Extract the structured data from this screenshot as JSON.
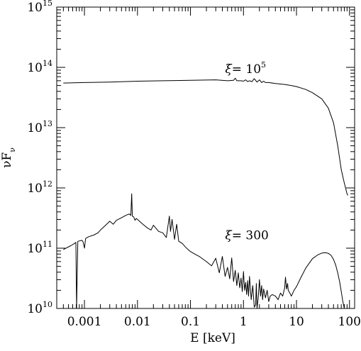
{
  "chart_data": {
    "type": "line",
    "title": "",
    "xlabel": "E [keV]",
    "ylabel": "νFν",
    "ylabel_parts": {
      "main": "νF",
      "sub": "ν"
    },
    "x_scale": "log",
    "y_scale": "log",
    "xlim": [
      0.0003,
      125
    ],
    "ylim": [
      10000000000.0,
      1000000000000000.0
    ],
    "grid": false,
    "x_ticks": [
      {
        "value": 0.001,
        "label": "0.001"
      },
      {
        "value": 0.01,
        "label": "0.01"
      },
      {
        "value": 0.1,
        "label": "0.1"
      },
      {
        "value": 1,
        "label": "1"
      },
      {
        "value": 10,
        "label": "10"
      },
      {
        "value": 100,
        "label": "100"
      }
    ],
    "y_ticks": [
      {
        "value": 10000000000.0,
        "base": "10",
        "exp": "10"
      },
      {
        "value": 100000000000.0,
        "base": "10",
        "exp": "11"
      },
      {
        "value": 1000000000000.0,
        "base": "10",
        "exp": "12"
      },
      {
        "value": 10000000000000.0,
        "base": "10",
        "exp": "13"
      },
      {
        "value": 100000000000000.0,
        "base": "10",
        "exp": "14"
      },
      {
        "value": 1000000000000000.0,
        "base": "10",
        "exp": "15"
      }
    ],
    "annotations": [
      {
        "id": "xi-high",
        "symbol": "ξ",
        "text": "= 10",
        "exp": "5",
        "x": 0.45,
        "y": 80000000000000.0
      },
      {
        "id": "xi-low",
        "symbol": "ξ",
        "text": "= 300",
        "exp": "",
        "x": 0.45,
        "y": 140000000000.0
      }
    ],
    "series": [
      {
        "id": "xi-1e5",
        "x": [
          0.0004,
          0.001,
          0.003,
          0.01,
          0.03,
          0.1,
          0.3,
          0.5,
          0.65,
          0.7,
          0.75,
          0.9,
          1.0,
          1.1,
          1.2,
          1.3,
          1.45,
          1.6,
          1.8,
          2.0,
          2.2,
          2.4,
          2.6,
          3.0,
          4.0,
          6.0,
          8.0,
          10,
          15,
          20,
          30,
          40,
          50,
          60,
          70,
          80,
          90,
          93
        ],
        "y": [
          55000000000000.0,
          56000000000000.0,
          57000000000000.0,
          59000000000000.0,
          60000000000000.0,
          61000000000000.0,
          62000000000000.0,
          60000000000000.0,
          61000000000000.0,
          66000000000000.0,
          60000000000000.0,
          60000000000000.0,
          59000000000000.0,
          62000000000000.0,
          58000000000000.0,
          60000000000000.0,
          58000000000000.0,
          65000000000000.0,
          57000000000000.0,
          62000000000000.0,
          56000000000000.0,
          59000000000000.0,
          56000000000000.0,
          56000000000000.0,
          54000000000000.0,
          52000000000000.0,
          50000000000000.0,
          48000000000000.0,
          43000000000000.0,
          38000000000000.0,
          30000000000000.0,
          21000000000000.0,
          12000000000000.0,
          5000000000000.0,
          2000000000000.0,
          1200000000000.0,
          800000000000.0,
          750000000000.0
        ]
      },
      {
        "id": "xi-300",
        "x": [
          0.0004,
          0.00055,
          0.00065,
          0.00069,
          0.00071,
          0.00075,
          0.0009,
          0.00095,
          0.001,
          0.00105,
          0.0012,
          0.0015,
          0.0018,
          0.002,
          0.0025,
          0.003,
          0.0035,
          0.004,
          0.005,
          0.006,
          0.007,
          0.0075,
          0.0078,
          0.008,
          0.0085,
          0.009,
          0.0095,
          0.01,
          0.012,
          0.015,
          0.018,
          0.02,
          0.025,
          0.03,
          0.035,
          0.04,
          0.042,
          0.045,
          0.05,
          0.055,
          0.06,
          0.07,
          0.08,
          0.09,
          0.1,
          0.12,
          0.15,
          0.2,
          0.25,
          0.3,
          0.35,
          0.4,
          0.45,
          0.5,
          0.55,
          0.6,
          0.65,
          0.7,
          0.75,
          0.8,
          0.85,
          0.9,
          0.95,
          1.0,
          1.05,
          1.1,
          1.15,
          1.2,
          1.25,
          1.3,
          1.4,
          1.5,
          1.6,
          1.7,
          1.75,
          1.8,
          1.9,
          2.0,
          2.1,
          2.2,
          2.3,
          2.4,
          2.6,
          2.8,
          3.0,
          3.2,
          3.5,
          4.0,
          4.5,
          5.0,
          5.5,
          6.0,
          6.2,
          6.5,
          6.8,
          7.0,
          7.5,
          8.0,
          9.0,
          10,
          12,
          15,
          20,
          25,
          30,
          35,
          40,
          45,
          50,
          55,
          60,
          65,
          70,
          75,
          80,
          85,
          90
        ],
        "y": [
          95000000000.0,
          110000000000.0,
          120000000000.0,
          125000000000.0,
          9000000000.0,
          130000000000.0,
          135000000000.0,
          125000000000.0,
          100000000000.0,
          145000000000.0,
          155000000000.0,
          165000000000.0,
          180000000000.0,
          200000000000.0,
          240000000000.0,
          280000000000.0,
          250000000000.0,
          290000000000.0,
          320000000000.0,
          350000000000.0,
          370000000000.0,
          350000000000.0,
          800000000000.0,
          340000000000.0,
          330000000000.0,
          290000000000.0,
          310000000000.0,
          300000000000.0,
          260000000000.0,
          220000000000.0,
          200000000000.0,
          240000000000.0,
          190000000000.0,
          180000000000.0,
          150000000000.0,
          340000000000.0,
          190000000000.0,
          300000000000.0,
          140000000000.0,
          250000000000.0,
          130000000000.0,
          120000000000.0,
          105000000000.0,
          95000000000.0,
          88000000000.0,
          80000000000.0,
          72000000000.0,
          60000000000.0,
          51000000000.0,
          68000000000.0,
          39000000000.0,
          73000000000.0,
          34000000000.0,
          48000000000.0,
          31000000000.0,
          69000000000.0,
          28000000000.0,
          43000000000.0,
          24000000000.0,
          39000000000.0,
          22000000000.0,
          32000000000.0,
          19000000000.0,
          41000000000.0,
          20000000000.0,
          27000000000.0,
          17000000000.0,
          29000000000.0,
          16000000000.0,
          34000000000.0,
          14000000000.0,
          24000000000.0,
          10500000000.0,
          11500000000.0,
          26000000000.0,
          10000000000.0,
          15000000000.0,
          30000000000.0,
          16000000000.0,
          24000000000.0,
          14000000000.0,
          21000000000.0,
          15000000000.0,
          20000000000.0,
          13000000000.0,
          16000000000.0,
          17000000000.0,
          16000000000.0,
          14000000000.0,
          18000000000.0,
          16000000000.0,
          22000000000.0,
          33000000000.0,
          21000000000.0,
          26000000000.0,
          20000000000.0,
          18000000000.0,
          16000000000.0,
          20000000000.0,
          23000000000.0,
          32000000000.0,
          47000000000.0,
          67000000000.0,
          77000000000.0,
          83000000000.0,
          84000000000.0,
          82000000000.0,
          76000000000.0,
          65000000000.0,
          52000000000.0,
          39000000000.0,
          28000000000.0,
          19000000000.0,
          13000000000.0,
          10000000000.0,
          10000000000.0,
          10000000000.0
        ]
      }
    ]
  }
}
